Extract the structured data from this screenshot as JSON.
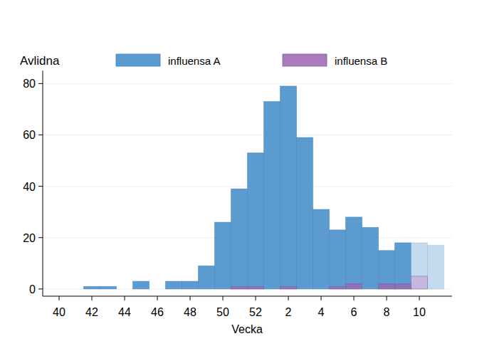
{
  "chart_data": {
    "type": "bar",
    "y_label": "Avlidna",
    "x_label": "Vecka",
    "categories": [
      "40",
      null,
      "42",
      null,
      "44",
      null,
      "46",
      null,
      "48",
      null,
      "50",
      null,
      "52",
      null,
      "2",
      null,
      "4",
      null,
      "6",
      null,
      "8",
      null,
      "10",
      null
    ],
    "series": [
      {
        "name": "influensa A",
        "color": "#5b9bd0",
        "colors": [
          "#5b9bd0",
          "#5b9bd0",
          "#5b9bd0",
          "#5b9bd0",
          "#5b9bd0",
          "#5b9bd0",
          "#5b9bd0",
          "#5b9bd0",
          "#5b9bd0",
          "#5b9bd0",
          "#5b9bd0",
          "#5b9bd0",
          "#5b9bd0",
          "#5b9bd0",
          "#5b9bd0",
          "#5b9bd0",
          "#5b9bd0",
          "#5b9bd0",
          "#5b9bd0",
          "#5b9bd0",
          "#5b9bd0",
          "#5b9bd0",
          "#c3dbef",
          "#c3dbef"
        ],
        "values": [
          0,
          0,
          1,
          1,
          0,
          3,
          0,
          3,
          3,
          9,
          26,
          39,
          53,
          73,
          79,
          59,
          31,
          23,
          28,
          24,
          15,
          18,
          18,
          17
        ]
      },
      {
        "name": "influensa B",
        "color": "#ab7cbd",
        "colors": [
          "#9370b0",
          "#9370b0",
          "#9370b0",
          "#9370b0",
          "#9370b0",
          "#9370b0",
          "#9370b0",
          "#9370b0",
          "#9370b0",
          "#9370b0",
          "#9370b0",
          "#9370b0",
          "#9370b0",
          "#9370b0",
          "#9370b0",
          "#9370b0",
          "#9370b0",
          "#9370b0",
          "#9370b0",
          "#9370b0",
          "#9370b0",
          "#9370b0",
          "#c8b3dc",
          "#c8b3dc"
        ],
        "values": [
          0,
          0,
          0,
          0,
          0,
          0,
          0,
          0,
          0,
          0,
          0,
          1,
          1,
          0,
          1,
          0,
          0,
          1,
          2,
          0,
          2,
          2,
          5,
          0
        ]
      }
    ],
    "ylim": [
      -2.8,
      85
    ],
    "yticks": [
      0,
      20,
      40,
      60,
      80
    ],
    "grid": true,
    "legend": "top"
  }
}
